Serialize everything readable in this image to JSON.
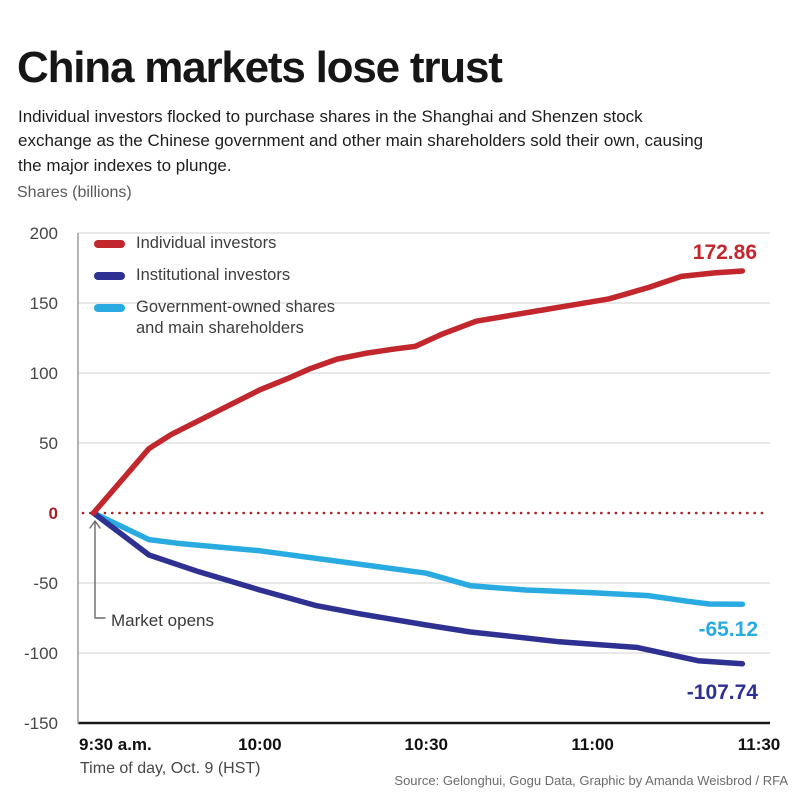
{
  "header": {
    "title": "China markets lose trust",
    "subtitle": "Individual investors flocked to purchase shares in the Shanghai and Shenzen stock exchange as the Chinese government and other main shareholders sold their own, causing the major indexes to plunge.",
    "y_axis_unit": "Shares (billions)"
  },
  "legend": {
    "items": [
      {
        "lines": [
          "Individual investors"
        ]
      },
      {
        "lines": [
          "Institutional investors"
        ]
      },
      {
        "lines": [
          "Government-owned shares",
          "and main shareholders"
        ]
      }
    ]
  },
  "annotation": {
    "market_opens": "Market opens"
  },
  "footer": {
    "x_axis_caption": "Time of day, Oct. 9 (HST)",
    "source": "Source: Gelonghui, Gogu Data, Graphic by Amanda Weisbrod / RFA"
  },
  "colors": {
    "individual": "#C1272D",
    "institutional": "#2E3192",
    "government": "#29ABE2",
    "zero_line": "#A82025",
    "grid": "#DBDBDB",
    "bottom_axis": "#1A1A1A",
    "left_axis": "#9B9B9B",
    "tick_text": "#464646",
    "x_tick_text": "#101010"
  },
  "chart_data": {
    "type": "line",
    "title": "China markets lose trust",
    "ylabel": "Shares (billions)",
    "xlabel": "Time of day, Oct. 9 (HST)",
    "ylim": [
      -150,
      200
    ],
    "yticks": [
      200,
      150,
      100,
      50,
      0,
      -50,
      -100,
      -150
    ],
    "x_unit_minutes_after": "9:30 a.m.",
    "xlim": [
      0,
      120
    ],
    "xticks": [
      {
        "t": 0,
        "label": "9:30 a.m.",
        "align": "start"
      },
      {
        "t": 30,
        "label": "10:00",
        "align": "middle"
      },
      {
        "t": 60,
        "label": "10:30",
        "align": "middle"
      },
      {
        "t": 90,
        "label": "11:00",
        "align": "middle"
      },
      {
        "t": 120,
        "label": "11:30",
        "align": "middle"
      }
    ],
    "grid": true,
    "zero_line_style": "dotted-red",
    "legend_position": "top-left-inside",
    "series": [
      {
        "name": "Individual investors",
        "color": "#C1272D",
        "end_label": "172.86",
        "points": [
          [
            0,
            0
          ],
          [
            10,
            46
          ],
          [
            14,
            56
          ],
          [
            20,
            68
          ],
          [
            25,
            78
          ],
          [
            30,
            88
          ],
          [
            35,
            96
          ],
          [
            39,
            103
          ],
          [
            44,
            110
          ],
          [
            49,
            114
          ],
          [
            54,
            117
          ],
          [
            58,
            119
          ],
          [
            63,
            128
          ],
          [
            69,
            137
          ],
          [
            75,
            141
          ],
          [
            81,
            145
          ],
          [
            87,
            149
          ],
          [
            93,
            153
          ],
          [
            100,
            161
          ],
          [
            106,
            169
          ],
          [
            112,
            171.5
          ],
          [
            117,
            172.86
          ]
        ]
      },
      {
        "name": "Institutional investors",
        "color": "#2E3192",
        "end_label": "-107.74",
        "points": [
          [
            0,
            0
          ],
          [
            10,
            -30
          ],
          [
            19,
            -42
          ],
          [
            30,
            -55
          ],
          [
            40,
            -66
          ],
          [
            48,
            -72
          ],
          [
            60,
            -80
          ],
          [
            68,
            -85
          ],
          [
            75,
            -88
          ],
          [
            84,
            -92
          ],
          [
            91,
            -94
          ],
          [
            98,
            -96
          ],
          [
            109,
            -105.5
          ],
          [
            117,
            -107.74
          ]
        ]
      },
      {
        "name": "Government-owned shares and main shareholders",
        "color": "#29ABE2",
        "end_label": "-65.12",
        "points": [
          [
            0,
            0
          ],
          [
            10,
            -19
          ],
          [
            16,
            -22
          ],
          [
            30,
            -27
          ],
          [
            45,
            -35
          ],
          [
            60,
            -43
          ],
          [
            68,
            -52
          ],
          [
            78,
            -55
          ],
          [
            90,
            -57
          ],
          [
            100,
            -59
          ],
          [
            107,
            -63
          ],
          [
            111,
            -65
          ],
          [
            117,
            -65.12
          ]
        ]
      }
    ]
  }
}
